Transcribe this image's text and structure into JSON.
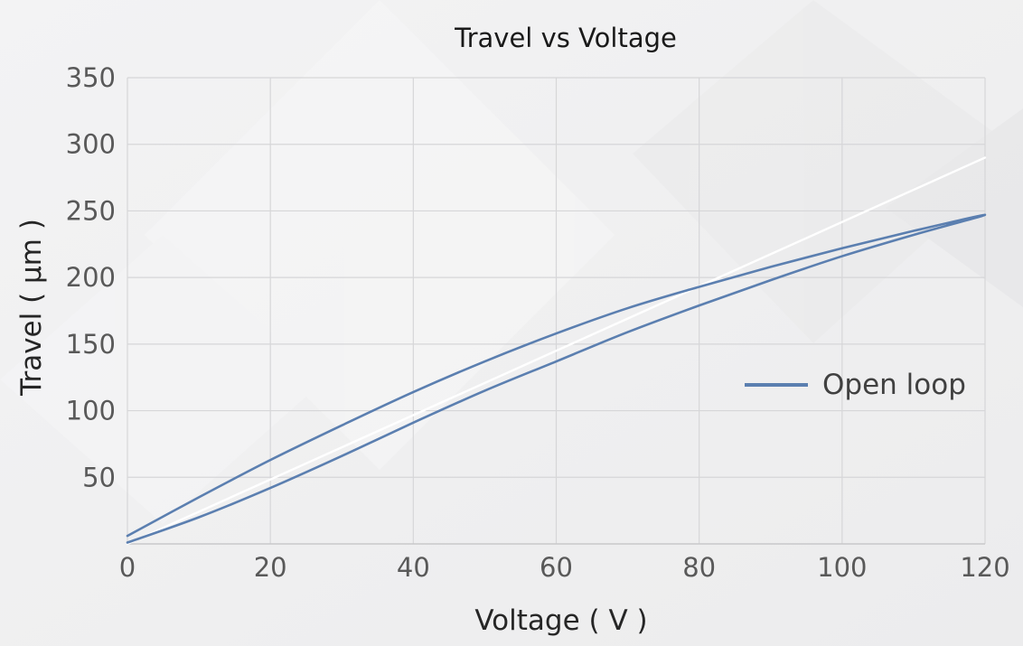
{
  "chart_data": {
    "type": "line",
    "title": "Travel vs Voltage",
    "xlabel": "Voltage ( V )",
    "ylabel": "Travel ( μm )",
    "xlim": [
      0,
      120
    ],
    "ylim": [
      0,
      350
    ],
    "xticks": [
      0,
      20,
      40,
      60,
      80,
      100,
      120
    ],
    "yticks": [
      50,
      100,
      150,
      200,
      250,
      300,
      350
    ],
    "grid": true,
    "legend_position": "right",
    "series": [
      {
        "name": "Open loop",
        "color": "#5b7fb0",
        "x": [
          0,
          10,
          20,
          30,
          40,
          50,
          60,
          70,
          80,
          90,
          100,
          110,
          120,
          110,
          100,
          90,
          80,
          70,
          60,
          50,
          40,
          30,
          20,
          10,
          0
        ],
        "y": [
          1,
          20,
          42,
          66,
          91,
          115,
          137,
          159,
          179,
          198,
          216,
          232,
          247,
          235,
          222,
          208,
          193,
          177,
          158,
          137,
          114,
          89,
          63,
          35,
          6
        ]
      },
      {
        "name": "",
        "color": "#ffffff",
        "x": [
          0,
          120
        ],
        "y": [
          0,
          290
        ]
      }
    ]
  }
}
